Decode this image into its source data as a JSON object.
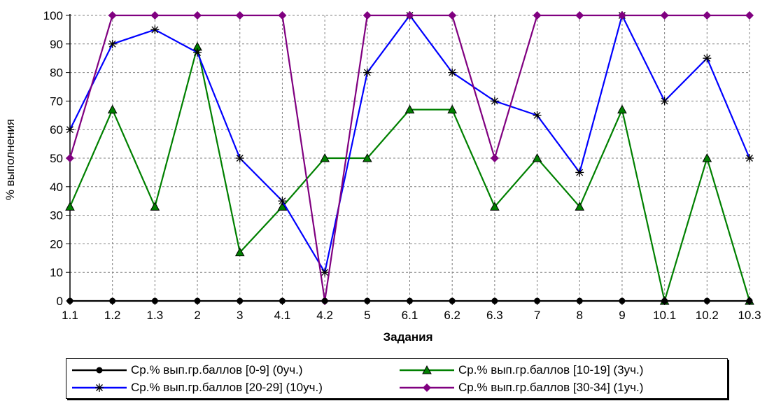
{
  "chart_data": {
    "type": "line",
    "title": "",
    "xlabel": "Задания",
    "ylabel": "% выполнения",
    "ylim": [
      0,
      100
    ],
    "yticks": [
      0,
      10,
      20,
      30,
      40,
      50,
      60,
      70,
      80,
      90,
      100
    ],
    "grid": true,
    "legend_position": "bottom",
    "categories": [
      "1.1",
      "1.2",
      "1.3",
      "2",
      "3",
      "4.1",
      "4.2",
      "5",
      "6.1",
      "6.2",
      "6.3",
      "7",
      "8",
      "9",
      "10.1",
      "10.2",
      "10.3"
    ],
    "series": [
      {
        "name": "Ср.% вып.гр.баллов [0-9] (0уч.)",
        "color": "#000000",
        "marker": "circle",
        "values": [
          0,
          0,
          0,
          0,
          0,
          0,
          0,
          0,
          0,
          0,
          0,
          0,
          0,
          0,
          0,
          0,
          0
        ]
      },
      {
        "name": "Ср.% вып.гр.баллов [10-19] (3уч.)",
        "color": "#008000",
        "marker": "triangle",
        "values": [
          33,
          67,
          33,
          89,
          17,
          33,
          50,
          50,
          67,
          67,
          33,
          50,
          33,
          67,
          0,
          50,
          0
        ]
      },
      {
        "name": "Ср.% вып.гр.баллов [20-29] (10уч.)",
        "color": "#0000ff",
        "marker": "star",
        "values": [
          60,
          90,
          95,
          87,
          50,
          35,
          10,
          80,
          100,
          80,
          70,
          65,
          45,
          100,
          70,
          85,
          50
        ]
      },
      {
        "name": "Ср.% вып.гр.баллов [30-34] (1уч.)",
        "color": "#800080",
        "marker": "diamond",
        "values": [
          50,
          100,
          100,
          100,
          100,
          100,
          0,
          100,
          100,
          100,
          50,
          100,
          100,
          100,
          100,
          100,
          100
        ]
      }
    ]
  }
}
